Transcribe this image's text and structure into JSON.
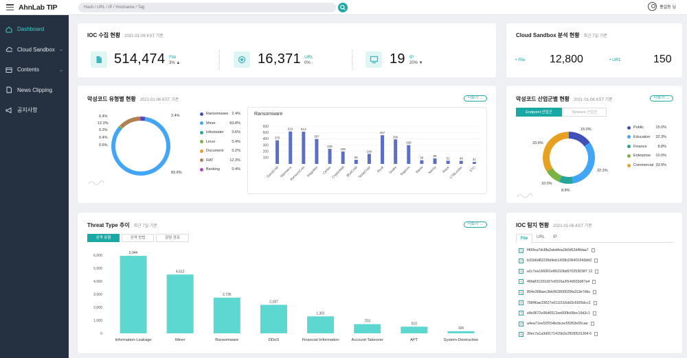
{
  "app": {
    "logo": "AhnLab TIP",
    "search_placeholder": "Hash / URL / IP / Hostname / Tag",
    "user": "홍길동 님"
  },
  "sidebar": {
    "items": [
      {
        "label": "Dashboard",
        "icon": "home-icon",
        "active": true
      },
      {
        "label": "Cloud Sandbox",
        "icon": "cloud-icon",
        "chevron": "⌄"
      },
      {
        "label": "Contents",
        "icon": "list-icon",
        "chevron": "⌄"
      },
      {
        "label": "News Clipping",
        "icon": "document-icon"
      },
      {
        "label": "공지사항",
        "icon": "megaphone-icon"
      }
    ]
  },
  "ioc_summary": {
    "title": "IOC 수집 현황",
    "sub": "2021-01-06 KST 기준",
    "stats": [
      {
        "icon": "file-icon",
        "value": "514,474",
        "label": "File",
        "pct": "3% ▲"
      },
      {
        "icon": "globe-icon",
        "value": "16,371",
        "label": "URL",
        "pct": "0% -"
      },
      {
        "icon": "monitor-icon",
        "value": "19",
        "label": "IP",
        "pct": "20% ▼"
      }
    ]
  },
  "sandbox": {
    "title": "Cloud Sandbox 분석 현황",
    "sub": "최근 7일 기준",
    "file_label": "• File",
    "file_value": "12,800",
    "url_label": "• URL",
    "url_value": "150"
  },
  "malware_type": {
    "title": "악성코드 유형별 현황",
    "sub": "2021-01-06 KST 기준",
    "more": "더보기 →",
    "legend": [
      {
        "name": "Ransomware",
        "pct": "2.4%",
        "color": "#3f51b5"
      },
      {
        "name": "Miner",
        "pct": "83.8%",
        "color": "#42a5f5"
      },
      {
        "name": "Infostealer",
        "pct": "0.6%",
        "color": "#26a69a"
      },
      {
        "name": "Linux",
        "pct": "0.4%",
        "color": "#7cb342"
      },
      {
        "name": "Document",
        "pct": "0.2%",
        "color": "#e8a020"
      },
      {
        "name": "RAT",
        "pct": "12.3%",
        "color": "#b08050"
      },
      {
        "name": "Banking",
        "pct": "0.4%",
        "color": "#ab47bc"
      }
    ],
    "donut_labels": [
      "0.4%",
      "12.3%",
      "0.2%",
      "0.4%",
      "0.6%",
      "2.4%",
      "83.8%"
    ],
    "ransom_title": "Ransomware",
    "chart_data": {
      "type": "bar",
      "categories": [
        "GandCrab",
        "Wannacry",
        "RansomCoin",
        "Magniber",
        "Cerber",
        "CryptoWall",
        "BlueCrab",
        "TeslaCrypt",
        "Ryuk",
        "Snake",
        "Rapture",
        "Bania",
        "Nemty",
        "Maze",
        "CTBLocker",
        "ETC"
      ],
      "values": [
        375,
        516,
        513,
        397,
        239,
        198,
        65,
        160,
        457,
        390,
        299,
        58,
        88,
        51,
        49,
        31
      ],
      "ylim": [
        0,
        600
      ],
      "yticks": [
        100,
        200,
        300,
        400,
        500,
        600
      ],
      "cat_labels": [
        "GandCrab",
        "Wannacry",
        "RansomCoin",
        "Magniber",
        "Cerber",
        "CryptoWall",
        "BlueCrab",
        "TeslaCrypt",
        "Ryuk",
        "Snake",
        "Rapture",
        "Bania",
        "Nemty",
        "Maze",
        "CTBLocker",
        "ETC"
      ],
      "color": "#5d6fc4"
    }
  },
  "industry": {
    "title": "악성코드 산업군별 현황",
    "sub": "2021-01-06 KST 기준",
    "more": "더보기 →",
    "tabs": [
      "Endpoint 산업군",
      "Network 산업군"
    ],
    "legend": [
      {
        "name": "Public",
        "pct": "15.0%",
        "color": "#3f51b5"
      },
      {
        "name": "Education",
        "pct": "32.3%",
        "color": "#42a5f5"
      },
      {
        "name": "Finance",
        "pct": "8.8%",
        "color": "#26a69a"
      },
      {
        "name": "Enterprise",
        "pct": "10.0%",
        "color": "#7cb342"
      },
      {
        "name": "Commercial",
        "pct": "33.9%",
        "color": "#e8a020"
      }
    ],
    "donut_labels": [
      "15.0%",
      "32.3%",
      "8.8%",
      "10.0%",
      "33.9%"
    ]
  },
  "threat": {
    "title": "Threat Type 추이",
    "sub": "최근 7일 기준",
    "more": "더보기 →",
    "tabs": [
      "공격 유형",
      "공격 방법",
      "감염 경로"
    ],
    "chart_data": {
      "type": "bar",
      "categories": [
        "Information-Leakage",
        "Miner",
        "Ransomware",
        "DDoS",
        "Financial-Information",
        "Account-Takeover",
        "APT",
        "System-Destruction"
      ],
      "values": [
        5944,
        4512,
        2735,
        2187,
        1301,
        703,
        510,
        165
      ],
      "value_labels": [
        "5,944",
        "4,512",
        "2,735",
        "2,187",
        "1,301",
        "703",
        "510",
        "165"
      ],
      "ylim": [
        0,
        6000
      ],
      "yticks": [
        0,
        1000,
        2000,
        3000,
        4000,
        5000,
        6000
      ],
      "ytick_labels": [
        "0",
        "1,000",
        "2,000",
        "3,000",
        "4,000",
        "5,000",
        "6,000"
      ],
      "color": "#5dd8d0"
    }
  },
  "ioc_detect": {
    "title": "IOC 탐지 현황",
    "sub": "2021-01-06 KST 기준",
    "tabs": [
      "File",
      "URL",
      "IP"
    ],
    "rows": [
      {
        "n": "1",
        "hash": "f400ea7dc8fa2abd4ea2b0d52d4fdaa7"
      },
      {
        "n": "2",
        "hash": "b31b6d82236d9eb1439b106401543dd2"
      },
      {
        "n": "3",
        "hash": "a1c7ea166061e86310bd9702530387 12"
      },
      {
        "n": "4",
        "hash": "46fa831331d37e5916a3f14d933d97a4"
      },
      {
        "n": "5",
        "hash": "854e368aec3bb962800026fa153e7dbc"
      },
      {
        "n": "6",
        "hash": "76846ae33627e0111516dd3c6926dcc2"
      },
      {
        "n": "7",
        "hash": "e8e9672e96d6512ee600fc68ec16d2c1"
      },
      {
        "n": "8",
        "hash": "a4ea71ee52f154bcbcec5f1f53e55cae"
      },
      {
        "n": "9",
        "hash": "30ec7a1a3d9171415b2e2f030531304 6"
      }
    ]
  }
}
